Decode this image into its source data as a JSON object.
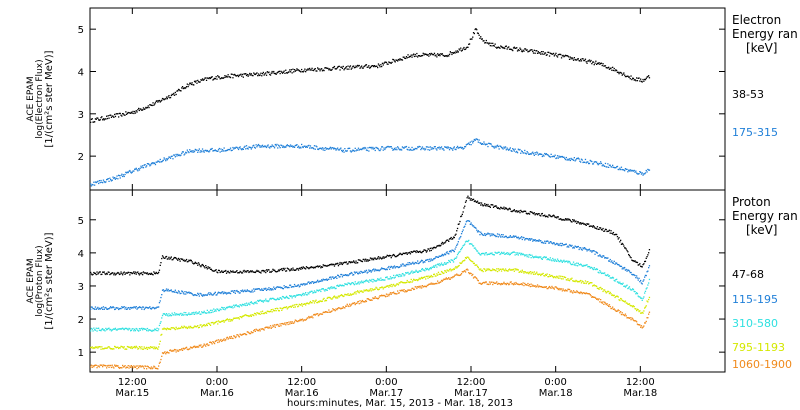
{
  "chart_data": [
    {
      "type": "line",
      "ylabel_lines": [
        "ACE EPAM",
        "log(Electron Flux)",
        "[1/(cm²s ster MeV)]"
      ],
      "ylim": [
        1.2,
        5.5
      ],
      "yticks": [
        2,
        3,
        4,
        5
      ],
      "legend_title": [
        "Electron",
        "Energy ran",
        "[keV]"
      ],
      "series": [
        {
          "name": "38-53",
          "color": "#000000",
          "points": [
            [
              0,
              2.85
            ],
            [
              0.25,
              2.95
            ],
            [
              0.5,
              3.05
            ],
            [
              0.75,
              3.25
            ],
            [
              1.0,
              3.5
            ],
            [
              1.15,
              3.7
            ],
            [
              1.4,
              3.85
            ],
            [
              1.6,
              3.9
            ],
            [
              2.0,
              3.95
            ],
            [
              2.5,
              4.05
            ],
            [
              3.0,
              4.1
            ],
            [
              3.4,
              4.15
            ],
            [
              3.8,
              4.4
            ],
            [
              4.2,
              4.4
            ],
            [
              4.45,
              4.6
            ],
            [
              4.55,
              5.0
            ],
            [
              4.62,
              4.75
            ],
            [
              4.8,
              4.6
            ],
            [
              5.0,
              4.55
            ],
            [
              5.5,
              4.4
            ],
            [
              6.0,
              4.2
            ],
            [
              6.2,
              4.05
            ],
            [
              6.4,
              3.85
            ],
            [
              6.52,
              3.8
            ],
            [
              6.6,
              3.9
            ]
          ]
        },
        {
          "name": "175-315",
          "color": "#1f7fd8",
          "points": [
            [
              0,
              1.35
            ],
            [
              0.3,
              1.5
            ],
            [
              0.6,
              1.75
            ],
            [
              0.9,
              1.95
            ],
            [
              1.2,
              2.15
            ],
            [
              1.5,
              2.15
            ],
            [
              2.0,
              2.25
            ],
            [
              2.5,
              2.25
            ],
            [
              3.0,
              2.15
            ],
            [
              3.5,
              2.2
            ],
            [
              4.0,
              2.2
            ],
            [
              4.4,
              2.2
            ],
            [
              4.55,
              2.4
            ],
            [
              4.65,
              2.3
            ],
            [
              5.0,
              2.15
            ],
            [
              5.5,
              2.0
            ],
            [
              6.0,
              1.85
            ],
            [
              6.3,
              1.7
            ],
            [
              6.52,
              1.6
            ],
            [
              6.6,
              1.7
            ]
          ]
        }
      ]
    },
    {
      "type": "line",
      "ylabel_lines": [
        "ACE EPAM",
        "log(Proton Flux)",
        "[1/(cm²s ster MeV)]"
      ],
      "ylim": [
        0.4,
        5.9
      ],
      "yticks": [
        1,
        2,
        3,
        4,
        5
      ],
      "legend_title": [
        "Proton",
        "Energy ran",
        "[keV]"
      ],
      "series": [
        {
          "name": "47-68",
          "color": "#000000",
          "points": [
            [
              0,
              3.4
            ],
            [
              0.8,
              3.4
            ],
            [
              0.85,
              3.9
            ],
            [
              1.2,
              3.75
            ],
            [
              1.5,
              3.45
            ],
            [
              2.0,
              3.45
            ],
            [
              2.5,
              3.55
            ],
            [
              3.0,
              3.7
            ],
            [
              3.5,
              3.9
            ],
            [
              4.0,
              4.1
            ],
            [
              4.3,
              4.5
            ],
            [
              4.45,
              5.7
            ],
            [
              4.6,
              5.5
            ],
            [
              5.0,
              5.3
            ],
            [
              5.5,
              5.1
            ],
            [
              5.9,
              4.85
            ],
            [
              6.2,
              4.6
            ],
            [
              6.4,
              3.8
            ],
            [
              6.52,
              3.6
            ],
            [
              6.6,
              4.1
            ]
          ]
        },
        {
          "name": "115-195",
          "color": "#1f7fd8",
          "points": [
            [
              0,
              2.35
            ],
            [
              0.8,
              2.35
            ],
            [
              0.85,
              2.9
            ],
            [
              1.3,
              2.75
            ],
            [
              2.0,
              2.9
            ],
            [
              2.5,
              3.05
            ],
            [
              3.0,
              3.35
            ],
            [
              3.5,
              3.55
            ],
            [
              4.0,
              3.8
            ],
            [
              4.3,
              4.1
            ],
            [
              4.45,
              5.0
            ],
            [
              4.6,
              4.6
            ],
            [
              5.0,
              4.5
            ],
            [
              5.5,
              4.3
            ],
            [
              5.9,
              4.1
            ],
            [
              6.2,
              3.7
            ],
            [
              6.4,
              3.4
            ],
            [
              6.52,
              3.1
            ],
            [
              6.6,
              3.6
            ]
          ]
        },
        {
          "name": "310-580",
          "color": "#2fe0e0",
          "points": [
            [
              0,
              1.7
            ],
            [
              0.8,
              1.7
            ],
            [
              0.85,
              2.15
            ],
            [
              1.3,
              2.2
            ],
            [
              2.0,
              2.55
            ],
            [
              2.5,
              2.75
            ],
            [
              3.0,
              3.05
            ],
            [
              3.5,
              3.25
            ],
            [
              4.0,
              3.55
            ],
            [
              4.3,
              3.8
            ],
            [
              4.45,
              4.4
            ],
            [
              4.6,
              4.0
            ],
            [
              5.0,
              4.0
            ],
            [
              5.5,
              3.8
            ],
            [
              5.9,
              3.6
            ],
            [
              6.2,
              3.2
            ],
            [
              6.4,
              2.9
            ],
            [
              6.52,
              2.6
            ],
            [
              6.6,
              3.2
            ]
          ]
        },
        {
          "name": "795-1193",
          "color": "#d4e800",
          "points": [
            [
              0,
              1.15
            ],
            [
              0.8,
              1.15
            ],
            [
              0.85,
              1.7
            ],
            [
              1.3,
              1.8
            ],
            [
              2.0,
              2.2
            ],
            [
              2.5,
              2.45
            ],
            [
              3.0,
              2.75
            ],
            [
              3.5,
              3.0
            ],
            [
              4.0,
              3.3
            ],
            [
              4.3,
              3.55
            ],
            [
              4.45,
              3.9
            ],
            [
              4.6,
              3.5
            ],
            [
              5.0,
              3.5
            ],
            [
              5.5,
              3.3
            ],
            [
              5.9,
              3.1
            ],
            [
              6.2,
              2.7
            ],
            [
              6.4,
              2.4
            ],
            [
              6.52,
              2.2
            ],
            [
              6.6,
              2.7
            ]
          ]
        },
        {
          "name": "1060-1900",
          "color": "#f08a1c",
          "points": [
            [
              0,
              0.6
            ],
            [
              0.8,
              0.55
            ],
            [
              0.85,
              1.0
            ],
            [
              1.3,
              1.2
            ],
            [
              2.0,
              1.7
            ],
            [
              2.5,
              2.0
            ],
            [
              3.0,
              2.4
            ],
            [
              3.5,
              2.75
            ],
            [
              4.0,
              3.05
            ],
            [
              4.3,
              3.3
            ],
            [
              4.45,
              3.5
            ],
            [
              4.6,
              3.1
            ],
            [
              5.0,
              3.1
            ],
            [
              5.5,
              2.95
            ],
            [
              5.9,
              2.75
            ],
            [
              6.2,
              2.3
            ],
            [
              6.4,
              2.0
            ],
            [
              6.52,
              1.75
            ],
            [
              6.6,
              2.2
            ]
          ]
        }
      ]
    }
  ],
  "x_axis": {
    "range": [
      0,
      7.5
    ],
    "ticks": [
      {
        "value": 0.5,
        "time": "12:00",
        "date": "Mar.15"
      },
      {
        "value": 1.5,
        "time": "0:00",
        "date": "Mar.16"
      },
      {
        "value": 2.5,
        "time": "12:00",
        "date": "Mar.16"
      },
      {
        "value": 3.5,
        "time": "0:00",
        "date": "Mar.17"
      },
      {
        "value": 4.5,
        "time": "12:00",
        "date": "Mar.17"
      },
      {
        "value": 5.5,
        "time": "0:00",
        "date": "Mar.18"
      },
      {
        "value": 6.5,
        "time": "12:00",
        "date": "Mar.18"
      }
    ],
    "xlabel": "hours:minutes, Mar. 15, 2013 - Mar. 18, 2013"
  }
}
